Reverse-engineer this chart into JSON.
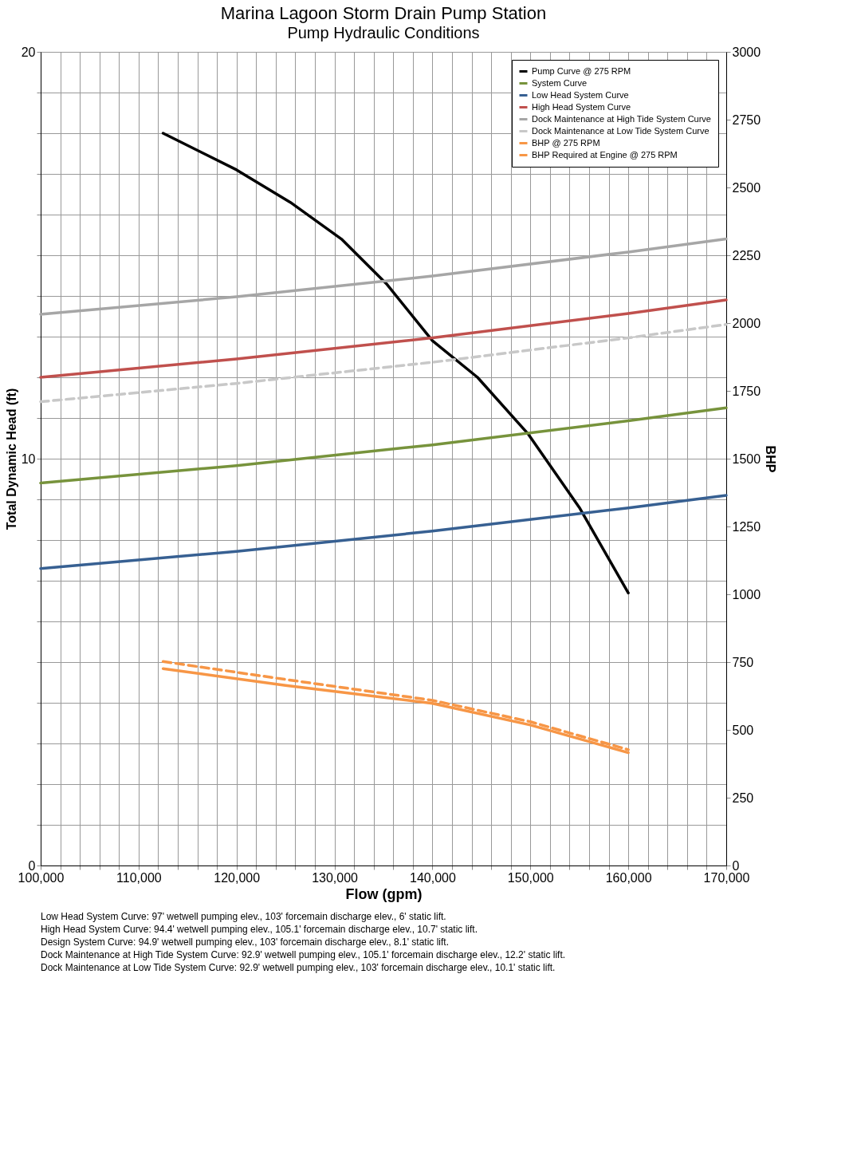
{
  "chart_data": {
    "type": "line",
    "title": "Marina Lagoon Storm Drain Pump Station",
    "subtitle": "Pump Hydraulic Conditions",
    "xlabel": "Flow (gpm)",
    "ylabel": "Total Dynamic Head (ft)",
    "y2label": "BHP",
    "xlim": [
      100000,
      170000
    ],
    "xticks": [
      {
        "value": 100000,
        "label": "100,000"
      },
      {
        "value": 102000,
        "label": null
      },
      {
        "value": 104000,
        "label": null
      },
      {
        "value": 106000,
        "label": null
      },
      {
        "value": 108000,
        "label": null
      },
      {
        "value": 110000,
        "label": "110,000"
      },
      {
        "value": 112000,
        "label": null
      },
      {
        "value": 114000,
        "label": null
      },
      {
        "value": 116000,
        "label": null
      },
      {
        "value": 118000,
        "label": null
      },
      {
        "value": 120000,
        "label": "120,000"
      },
      {
        "value": 122000,
        "label": null
      },
      {
        "value": 124000,
        "label": null
      },
      {
        "value": 126000,
        "label": null
      },
      {
        "value": 128000,
        "label": null
      },
      {
        "value": 130000,
        "label": "130,000"
      },
      {
        "value": 132000,
        "label": null
      },
      {
        "value": 134000,
        "label": null
      },
      {
        "value": 136000,
        "label": null
      },
      {
        "value": 138000,
        "label": null
      },
      {
        "value": 140000,
        "label": "140,000"
      },
      {
        "value": 142000,
        "label": null
      },
      {
        "value": 144000,
        "label": null
      },
      {
        "value": 146000,
        "label": null
      },
      {
        "value": 148000,
        "label": null
      },
      {
        "value": 150000,
        "label": "150,000"
      },
      {
        "value": 152000,
        "label": null
      },
      {
        "value": 154000,
        "label": null
      },
      {
        "value": 156000,
        "label": null
      },
      {
        "value": 158000,
        "label": null
      },
      {
        "value": 160000,
        "label": "160,000"
      },
      {
        "value": 162000,
        "label": null
      },
      {
        "value": 164000,
        "label": null
      },
      {
        "value": 166000,
        "label": null
      },
      {
        "value": 168000,
        "label": null
      },
      {
        "value": 170000,
        "label": "170,000"
      }
    ],
    "ylim": [
      0,
      20
    ],
    "yticks": [
      0,
      {
        "value": 1,
        "label": null
      },
      {
        "value": 2,
        "label": null
      },
      {
        "value": 3,
        "label": null
      },
      {
        "value": 4,
        "label": null
      },
      {
        "value": 5,
        "label": null
      },
      {
        "value": 6,
        "label": null
      },
      {
        "value": 7,
        "label": null
      },
      {
        "value": 8,
        "label": null
      },
      {
        "value": 9,
        "label": null
      },
      10,
      {
        "value": 11,
        "label": null
      },
      {
        "value": 12,
        "label": null
      },
      {
        "value": 13,
        "label": null
      },
      {
        "value": 14,
        "label": null
      },
      {
        "value": 15,
        "label": null
      },
      {
        "value": 16,
        "label": null
      },
      {
        "value": 17,
        "label": null
      },
      {
        "value": 18,
        "label": null
      },
      {
        "value": 19,
        "label": null
      },
      20
    ],
    "y2lim": [
      0,
      3000
    ],
    "y2ticks": [
      0,
      250,
      500,
      750,
      1000,
      1250,
      1500,
      1750,
      2000,
      2250,
      2500,
      2750,
      3000
    ],
    "grid": true,
    "legend": "top right",
    "series": [
      {
        "name": "Pump Curve @ 275 RPM",
        "color": "#000000",
        "line_style": "solid",
        "x": [
          112500,
          120000,
          125500,
          130700,
          135300,
          140000,
          144600,
          149800,
          155000,
          160000
        ],
        "values": [
          18.0,
          17.1,
          16.3,
          15.4,
          14.3,
          12.9,
          12.0,
          10.6,
          8.8,
          6.7
        ]
      },
      {
        "name": "System Curve",
        "color": "#77933c",
        "line_style": "solid",
        "x": [
          100000,
          120000,
          140000,
          160000,
          170000
        ],
        "values": [
          9.4,
          9.83,
          10.34,
          10.93,
          11.25
        ]
      },
      {
        "name": "Low Head System Curve",
        "color": "#376092",
        "line_style": "solid",
        "x": [
          100000,
          120000,
          140000,
          160000,
          170000
        ],
        "values": [
          7.3,
          7.72,
          8.22,
          8.79,
          9.1
        ]
      },
      {
        "name": "High Head System Curve",
        "color": "#c0504d",
        "line_style": "solid",
        "x": [
          100000,
          120000,
          140000,
          160000,
          170000
        ],
        "values": [
          12.0,
          12.45,
          12.97,
          13.57,
          13.9
        ]
      },
      {
        "name": "Dock Maintenance at High Tide System Curve",
        "color": "#a6a6a6",
        "line_style": "solid",
        "x": [
          100000,
          120000,
          140000,
          160000,
          170000
        ],
        "values": [
          13.55,
          13.98,
          14.49,
          15.08,
          15.4
        ]
      },
      {
        "name": "Dock Maintenance at Low Tide System Curve",
        "color": "#c8c8c8",
        "line_style": "dashed",
        "x": [
          100000,
          120000,
          140000,
          160000,
          170000
        ],
        "values": [
          11.4,
          11.85,
          12.37,
          12.97,
          13.3
        ]
      },
      {
        "name": "BHP @ 275 RPM",
        "color": "#f79646",
        "line_style": "solid",
        "axis": "y2",
        "x": [
          112500,
          125000,
          140000,
          150000,
          160000
        ],
        "values": [
          726,
          664,
          598,
          518,
          416
        ]
      },
      {
        "name": "BHP Required at Engine @ 275 RPM",
        "color": "#f79646",
        "line_style": "dashed",
        "axis": "y2",
        "x": [
          112500,
          125000,
          140000,
          150000,
          160000
        ],
        "values": [
          752,
          686,
          609,
          530,
          427
        ]
      }
    ],
    "annotations": [
      "Low Head System Curve: 97' wetwell pumping elev., 103' forcemain discharge elev., 6' static lift.",
      "High Head System Curve: 94.4' wetwell pumping elev., 105.1' forcemain discharge elev., 10.7' static lift.",
      "Design System Curve: 94.9' wetwell pumping elev., 103' forcemain discharge elev., 8.1' static lift.",
      "Dock Maintenance at High Tide System Curve: 92.9' wetwell pumping elev., 105.1' forcemain discharge elev., 12.2' static lift.",
      "Dock Maintenance at Low Tide System Curve: 92.9' wetwell pumping elev., 103' forcemain discharge elev., 10.1' static lift."
    ]
  }
}
